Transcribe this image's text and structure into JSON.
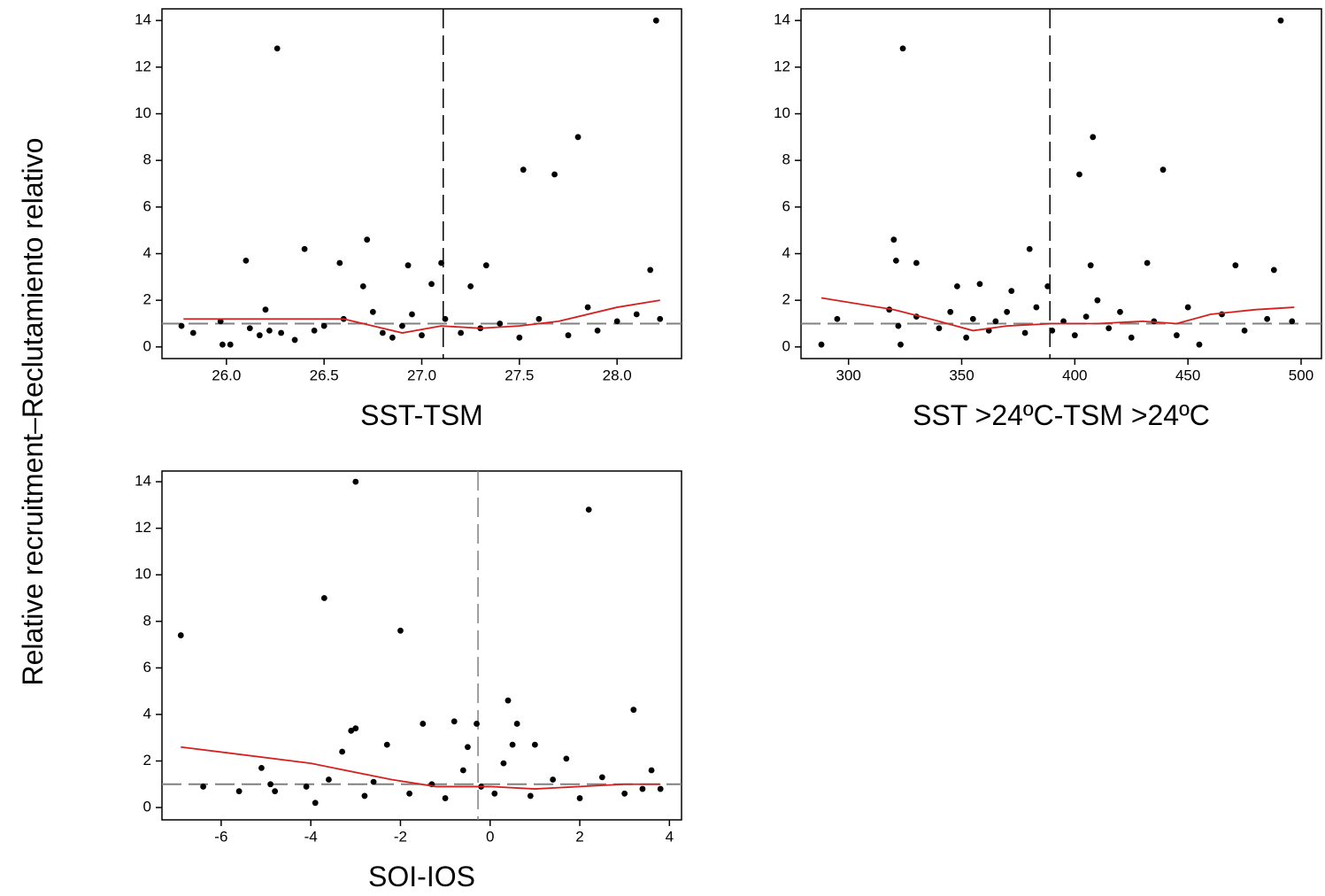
{
  "chart_data": [
    {
      "type": "scatter",
      "ylabel": "Relative recruitment–Reclutamiento relativo",
      "xlabel": "SST-TSM",
      "xlim": [
        25.67,
        28.33
      ],
      "ylim": [
        -0.5,
        14.5
      ],
      "xticks": [
        {
          "value": 26,
          "label": "26.0"
        },
        26.5,
        {
          "value": 27,
          "label": "27.0"
        },
        27.5,
        {
          "value": 28,
          "label": "28.0"
        }
      ],
      "yticks": [
        0,
        2,
        4,
        6,
        8,
        10,
        12,
        14
      ],
      "vline": 27.11,
      "vline_color": "#000000",
      "hline": 1,
      "hline_color": "#808080",
      "series": [
        {
          "color": "#000000",
          "x": [
            25.77,
            25.83,
            25.97,
            25.98,
            26.02,
            26.1,
            26.12,
            26.17,
            26.2,
            26.22,
            26.26,
            26.28,
            26.35,
            26.4,
            26.45,
            26.5,
            26.58,
            26.6,
            26.7,
            26.72,
            26.75,
            26.8,
            26.85,
            26.9,
            26.93,
            26.95,
            27.0,
            27.05,
            27.1,
            27.12,
            27.2,
            27.25,
            27.3,
            27.33,
            27.4,
            27.5,
            27.52,
            27.6,
            27.68,
            27.75,
            27.8,
            27.85,
            27.9,
            28.0,
            28.1,
            28.17,
            28.2,
            28.22
          ],
          "values": [
            0.9,
            0.6,
            1.1,
            0.1,
            0.1,
            3.7,
            0.8,
            0.5,
            1.6,
            0.7,
            12.8,
            0.6,
            0.3,
            4.2,
            0.7,
            0.9,
            3.6,
            1.2,
            2.6,
            4.6,
            1.5,
            0.6,
            0.4,
            0.9,
            3.5,
            1.4,
            0.5,
            2.7,
            3.6,
            1.2,
            0.6,
            2.6,
            0.8,
            3.5,
            1.0,
            0.4,
            7.6,
            1.2,
            7.4,
            0.5,
            9.0,
            1.7,
            0.7,
            1.1,
            1.4,
            3.3,
            14.0,
            1.2
          ]
        },
        {
          "type": "line",
          "color": "#d62020",
          "x": [
            25.78,
            26.3,
            26.6,
            26.8,
            26.9,
            27.1,
            27.3,
            27.5,
            27.7,
            28.0,
            28.22
          ],
          "values": [
            1.2,
            1.2,
            1.2,
            0.8,
            0.6,
            0.9,
            0.8,
            0.9,
            1.1,
            1.7,
            2.0
          ]
        }
      ]
    },
    {
      "type": "scatter",
      "xlabel": "SST >24ºC-TSM >24ºC",
      "xlim": [
        279,
        509
      ],
      "ylim": [
        -0.5,
        14.5
      ],
      "xticks": [
        300,
        350,
        400,
        450,
        500
      ],
      "yticks": [
        0,
        2,
        4,
        6,
        8,
        10,
        12,
        14
      ],
      "vline": 389,
      "vline_color": "#000000",
      "hline": 1,
      "hline_color": "#808080",
      "series": [
        {
          "color": "#000000",
          "x": [
            288,
            295,
            318,
            320,
            321,
            322,
            323,
            324,
            330,
            330,
            340,
            345,
            348,
            352,
            355,
            358,
            362,
            365,
            370,
            372,
            378,
            380,
            383,
            388,
            390,
            395,
            400,
            402,
            405,
            407,
            408,
            410,
            415,
            420,
            425,
            432,
            435,
            439,
            445,
            450,
            455,
            465,
            471,
            475,
            485,
            488,
            491,
            496
          ],
          "values": [
            0.1,
            1.2,
            1.6,
            4.6,
            3.7,
            0.9,
            0.1,
            12.8,
            3.6,
            1.3,
            0.8,
            1.5,
            2.6,
            0.4,
            1.2,
            2.7,
            0.7,
            1.1,
            1.5,
            2.4,
            0.6,
            4.2,
            1.7,
            2.6,
            0.7,
            1.1,
            0.5,
            7.4,
            1.3,
            3.5,
            9.0,
            2.0,
            0.8,
            1.5,
            0.4,
            3.6,
            1.1,
            7.6,
            0.5,
            1.7,
            0.1,
            1.4,
            3.5,
            0.7,
            1.2,
            3.3,
            14.0,
            1.1
          ]
        },
        {
          "type": "line",
          "color": "#d62020",
          "x": [
            288,
            320,
            340,
            355,
            370,
            390,
            410,
            430,
            445,
            460,
            480,
            497
          ],
          "values": [
            2.1,
            1.6,
            1.1,
            0.7,
            0.9,
            1.0,
            1.0,
            1.1,
            1.0,
            1.4,
            1.6,
            1.7
          ]
        }
      ]
    },
    {
      "type": "scatter",
      "xlabel": "SOI-IOS",
      "xlim": [
        -7.32,
        4.27
      ],
      "ylim": [
        -0.53,
        14.46
      ],
      "xticks": [
        -6,
        -4,
        -2,
        0,
        2,
        4
      ],
      "yticks": [
        0,
        2,
        4,
        6,
        8,
        10,
        12,
        14
      ],
      "vline": -0.27,
      "vline_color": "#808080",
      "hline": 1,
      "hline_color": "#808080",
      "series": [
        {
          "color": "#000000",
          "x": [
            -6.9,
            -6.4,
            -5.6,
            -5.1,
            -4.9,
            -4.8,
            -4.1,
            -3.9,
            -3.7,
            -3.6,
            -3.3,
            -3.1,
            -3.0,
            -3.0,
            -2.8,
            -2.6,
            -2.3,
            -2.0,
            -1.8,
            -1.5,
            -1.3,
            -1.0,
            -0.8,
            -0.6,
            -0.5,
            -0.3,
            -0.2,
            0.1,
            0.3,
            0.4,
            0.5,
            0.6,
            0.9,
            1.0,
            1.4,
            1.7,
            2.0,
            2.2,
            2.5,
            3.0,
            3.2,
            3.4,
            3.6,
            3.8
          ],
          "values": [
            7.4,
            0.9,
            0.7,
            1.7,
            1.0,
            0.7,
            0.9,
            0.2,
            9.0,
            1.2,
            2.4,
            3.3,
            14.0,
            3.4,
            0.5,
            1.1,
            2.7,
            7.6,
            0.6,
            3.6,
            1.0,
            0.4,
            3.7,
            1.6,
            2.6,
            3.6,
            0.9,
            0.6,
            1.9,
            4.6,
            2.7,
            3.6,
            0.5,
            2.7,
            1.2,
            2.1,
            0.4,
            12.8,
            1.3,
            0.6,
            4.2,
            0.8,
            1.6,
            0.8
          ]
        },
        {
          "type": "line",
          "color": "#d62020",
          "x": [
            -6.9,
            -4,
            -2.2,
            -1.2,
            0,
            1,
            2,
            3,
            3.8
          ],
          "values": [
            2.6,
            1.9,
            1.2,
            0.9,
            0.9,
            0.8,
            0.9,
            1.0,
            1.0
          ]
        }
      ]
    }
  ]
}
